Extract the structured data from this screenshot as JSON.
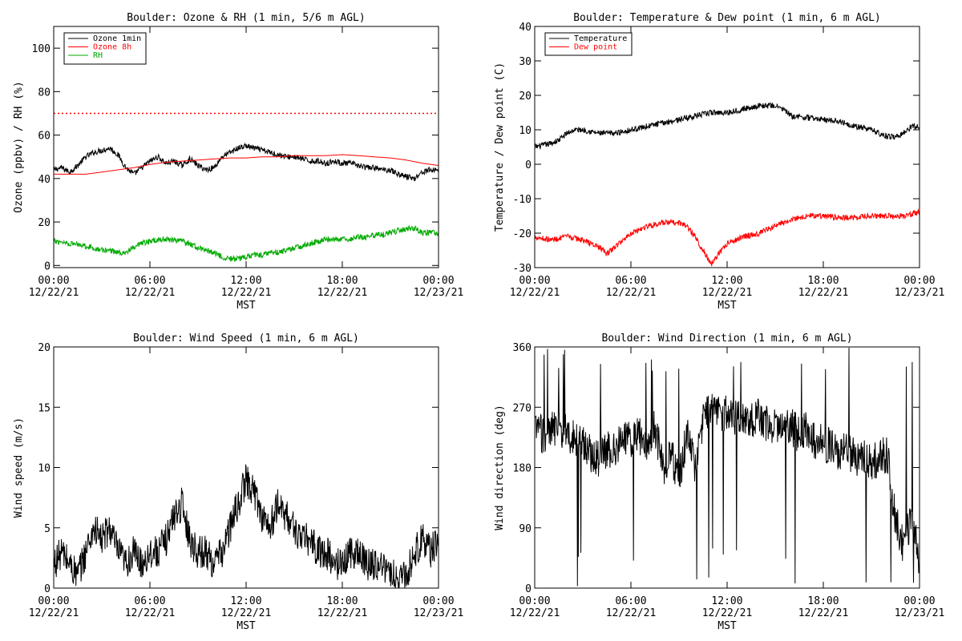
{
  "chart_data": [
    {
      "type": "line",
      "title": "Boulder: Ozone & RH (1 min, 5/6 m AGL)",
      "ylabel": "Ozone (ppbv) / RH (%)",
      "xlabel": "MST",
      "x_ticks": [
        {
          "time": "00:00",
          "date": "12/22/21"
        },
        {
          "time": "06:00",
          "date": "12/22/21"
        },
        {
          "time": "12:00",
          "date": "12/22/21"
        },
        {
          "time": "18:00",
          "date": "12/22/21"
        },
        {
          "time": "00:00",
          "date": "12/23/21"
        }
      ],
      "xlim_hours": [
        0,
        24
      ],
      "ylim": [
        -1,
        110
      ],
      "y_ticks": [
        0,
        20,
        40,
        60,
        80,
        100
      ],
      "legend_position": "top-left",
      "reference_line": {
        "y": 70,
        "color": "#ff0000",
        "style": "dotted"
      },
      "series": [
        {
          "name": "Ozone 1min",
          "color": "#000000",
          "noisy": true,
          "x": [
            0,
            0.5,
            1,
            1.5,
            2,
            2.5,
            3,
            3.5,
            4,
            4.5,
            5,
            5.5,
            6,
            6.5,
            7,
            7.5,
            8,
            8.5,
            9,
            9.5,
            10,
            10.5,
            11,
            11.5,
            12,
            12.5,
            13,
            13.5,
            14,
            14.5,
            15,
            15.5,
            16,
            16.5,
            17,
            17.5,
            18,
            18.5,
            19,
            19.5,
            20,
            20.5,
            21,
            21.5,
            22,
            22.5,
            23,
            23.5,
            24
          ],
          "y": [
            44,
            45,
            43,
            46,
            50,
            52,
            53,
            54,
            51,
            45,
            42,
            45,
            48,
            50,
            47,
            48,
            46,
            49,
            46,
            44,
            45,
            50,
            52,
            54,
            55,
            54,
            53,
            52,
            51,
            50,
            50,
            49,
            48,
            48,
            47,
            48,
            47,
            47,
            46,
            45,
            45,
            44,
            44,
            42,
            41,
            40,
            43,
            44,
            44
          ]
        },
        {
          "name": "Ozone 8h",
          "color": "#ff0000",
          "x": [
            0,
            1,
            2,
            3,
            4,
            5,
            6,
            7,
            8,
            9,
            10,
            11,
            12,
            13,
            14,
            15,
            16,
            17,
            18,
            19,
            20,
            21,
            22,
            23,
            24
          ],
          "y": [
            42,
            42,
            42,
            43,
            44,
            45,
            46.5,
            47.5,
            48,
            48.5,
            49,
            49.5,
            49.5,
            50,
            50,
            50.5,
            50.5,
            50.5,
            51,
            50.5,
            50,
            49.5,
            48.5,
            47,
            46
          ]
        },
        {
          "name": "RH",
          "color": "#00aa00",
          "noisy": true,
          "x": [
            0,
            0.5,
            1,
            1.5,
            2,
            2.5,
            3,
            3.5,
            4,
            4.5,
            5,
            5.5,
            6,
            6.5,
            7,
            7.5,
            8,
            8.5,
            9,
            9.5,
            10,
            10.5,
            11,
            11.5,
            12,
            12.5,
            13,
            13.5,
            14,
            14.5,
            15,
            15.5,
            16,
            16.5,
            17,
            17.5,
            18,
            18.5,
            19,
            19.5,
            20,
            20.5,
            21,
            21.5,
            22,
            22.5,
            23,
            23.5,
            24
          ],
          "y": [
            11,
            11,
            10,
            10,
            9,
            8,
            7,
            7,
            6,
            6,
            8,
            10,
            11,
            12,
            12,
            12,
            11,
            10,
            8,
            7,
            6,
            4,
            3,
            3,
            4,
            5,
            5,
            6,
            6,
            7,
            8,
            9,
            10,
            11,
            12,
            12,
            12,
            12,
            13,
            13,
            14,
            14,
            15,
            16,
            17,
            17,
            15,
            15,
            15
          ]
        }
      ]
    },
    {
      "type": "line",
      "title": "Boulder: Temperature & Dew point (1 min, 6 m AGL)",
      "ylabel": "Temperature / Dew point (C)",
      "xlabel": "MST",
      "x_ticks": [
        {
          "time": "00:00",
          "date": "12/22/21"
        },
        {
          "time": "06:00",
          "date": "12/22/21"
        },
        {
          "time": "12:00",
          "date": "12/22/21"
        },
        {
          "time": "18:00",
          "date": "12/22/21"
        },
        {
          "time": "00:00",
          "date": "12/23/21"
        }
      ],
      "xlim_hours": [
        0,
        24
      ],
      "ylim": [
        -30,
        40
      ],
      "y_ticks": [
        -30,
        -20,
        -10,
        0,
        10,
        20,
        30,
        40
      ],
      "legend_position": "top-left",
      "series": [
        {
          "name": "Temperature",
          "color": "#000000",
          "noisy": true,
          "x": [
            0,
            1,
            1.5,
            2,
            2.5,
            3,
            4,
            5,
            6,
            7,
            8,
            9,
            10,
            11,
            12,
            13,
            14,
            15,
            15.5,
            16,
            17,
            18,
            19,
            20,
            21,
            22,
            22.5,
            23,
            23.5,
            24
          ],
          "y": [
            5,
            6,
            7,
            9,
            10,
            10,
            9,
            9,
            10,
            11,
            12,
            13,
            14,
            15,
            15,
            16,
            17,
            17,
            16,
            14,
            13.5,
            13,
            12.5,
            11,
            10,
            8,
            8,
            9,
            11,
            11
          ]
        },
        {
          "name": "Dew point",
          "color": "#ff0000",
          "noisy": true,
          "x": [
            0,
            1,
            2,
            3,
            4,
            4.5,
            5,
            6,
            7,
            8,
            9,
            9.5,
            10,
            10.5,
            11,
            11.5,
            12,
            13,
            14,
            15,
            16,
            17,
            18,
            19,
            20,
            21,
            22,
            23,
            24
          ],
          "y": [
            -21,
            -22,
            -21,
            -22,
            -24,
            -26,
            -24,
            -20,
            -18,
            -17,
            -17,
            -18,
            -21,
            -25,
            -29,
            -26,
            -23,
            -21,
            -20,
            -18,
            -16,
            -15,
            -15,
            -15.5,
            -15.5,
            -15,
            -15,
            -15,
            -14
          ]
        }
      ]
    },
    {
      "type": "line",
      "title": "Boulder: Wind Speed (1 min, 6 m AGL)",
      "ylabel": "Wind speed (m/s)",
      "xlabel": "MST",
      "x_ticks": [
        {
          "time": "00:00",
          "date": "12/22/21"
        },
        {
          "time": "06:00",
          "date": "12/22/21"
        },
        {
          "time": "12:00",
          "date": "12/22/21"
        },
        {
          "time": "18:00",
          "date": "12/22/21"
        },
        {
          "time": "00:00",
          "date": "12/23/21"
        }
      ],
      "xlim_hours": [
        0,
        24
      ],
      "ylim": [
        0,
        20
      ],
      "y_ticks": [
        0,
        5,
        10,
        15,
        20
      ],
      "series": [
        {
          "name": "",
          "color": "#000000",
          "noisy": true,
          "x": [
            0,
            0.5,
            1,
            1.5,
            2,
            2.5,
            3,
            3.5,
            4,
            4.5,
            5,
            5.5,
            6,
            6.5,
            7,
            7.5,
            8,
            8.5,
            9,
            9.5,
            10,
            10.5,
            11,
            11.5,
            12,
            12.5,
            13,
            13.5,
            14,
            14.5,
            15,
            15.5,
            16,
            16.5,
            17,
            17.5,
            18,
            18.5,
            19,
            19.5,
            20,
            20.5,
            21,
            21.5,
            22,
            22.5,
            23,
            23.5,
            24
          ],
          "y": [
            2,
            3,
            2,
            1,
            3,
            5,
            4,
            5,
            3,
            2,
            3,
            2,
            3,
            3,
            4,
            6,
            7,
            4,
            3,
            3,
            2,
            3,
            5,
            7,
            9,
            8,
            6,
            5,
            7,
            6,
            5,
            4,
            4,
            3,
            3,
            2,
            2,
            3,
            3,
            2,
            2,
            2,
            1,
            1,
            1,
            3,
            4,
            3,
            4
          ]
        }
      ]
    },
    {
      "type": "line",
      "title": "Boulder: Wind Direction (1 min, 6 m AGL)",
      "ylabel": "Wind direction (deg)",
      "xlabel": "MST",
      "x_ticks": [
        {
          "time": "00:00",
          "date": "12/22/21"
        },
        {
          "time": "06:00",
          "date": "12/22/21"
        },
        {
          "time": "12:00",
          "date": "12/22/21"
        },
        {
          "time": "18:00",
          "date": "12/22/21"
        },
        {
          "time": "00:00",
          "date": "12/23/21"
        }
      ],
      "xlim_hours": [
        0,
        24
      ],
      "ylim": [
        0,
        360
      ],
      "y_ticks": [
        0,
        90,
        180,
        270,
        360
      ],
      "series": [
        {
          "name": "",
          "color": "#000000",
          "noisy": true,
          "x": [
            0,
            0.5,
            1,
            1.5,
            2,
            2.5,
            3,
            3.5,
            4,
            4.5,
            5,
            5.5,
            6,
            6.5,
            7,
            7.5,
            8,
            8.5,
            9,
            9.5,
            10,
            10.5,
            11,
            11.5,
            12,
            12.5,
            13,
            13.5,
            14,
            14.5,
            15,
            15.5,
            16,
            16.5,
            17,
            17.5,
            18,
            18.5,
            19,
            19.5,
            20,
            20.5,
            21,
            21.5,
            22,
            22.5,
            23,
            23.5,
            24
          ],
          "y": [
            240,
            230,
            235,
            240,
            230,
            225,
            215,
            200,
            195,
            205,
            210,
            225,
            220,
            230,
            210,
            240,
            180,
            200,
            160,
            230,
            180,
            250,
            270,
            265,
            260,
            255,
            250,
            250,
            255,
            245,
            240,
            245,
            240,
            230,
            235,
            220,
            215,
            210,
            200,
            205,
            195,
            200,
            190,
            195,
            200,
            100,
            60,
            110,
            40
          ]
        }
      ]
    }
  ]
}
